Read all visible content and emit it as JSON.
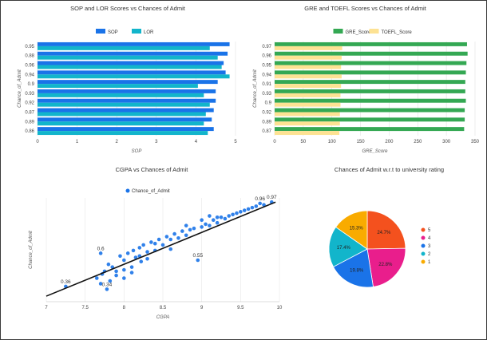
{
  "charts": [
    {
      "id": "sop_lor",
      "type": "bar",
      "orientation": "horizontal",
      "title": "SOP and LOR Scores vs Chances of Admit",
      "xlabel": "SOP",
      "ylabel": "Chance_of_Admit",
      "categories": [
        "0.95",
        "0.88",
        "0.96",
        "0.94",
        "0.9",
        "0.93",
        "0.92",
        "0.87",
        "0.89",
        "0.86"
      ],
      "series": [
        {
          "name": "SOP",
          "color": "#1a73e8",
          "values": [
            4.85,
            4.8,
            4.7,
            4.75,
            4.55,
            4.5,
            4.5,
            4.45,
            4.4,
            4.45
          ]
        },
        {
          "name": "LOR",
          "color": "#12b5cb",
          "values": [
            4.35,
            4.55,
            4.65,
            4.85,
            4.05,
            4.2,
            4.35,
            4.25,
            4.2,
            4.3
          ]
        }
      ],
      "xlim": [
        0,
        5
      ],
      "xticks": [
        "0",
        "1",
        "2",
        "3",
        "4",
        "5"
      ],
      "legend": "top-center"
    },
    {
      "id": "gre_toefl",
      "type": "bar",
      "orientation": "horizontal",
      "title": "GRE and TOEFL Scores vs Chances of Admit",
      "xlabel": "GRE_Score",
      "ylabel": "Chance_of_Admit",
      "categories": [
        "0.97",
        "0.96",
        "0.95",
        "0.94",
        "0.91",
        "0.93",
        "0.9",
        "0.92",
        "0.89",
        "0.87"
      ],
      "series": [
        {
          "name": "GRE_Score",
          "color": "#34a853",
          "values": [
            336,
            337,
            335,
            334,
            333,
            333,
            334,
            332,
            332,
            331
          ]
        },
        {
          "name": "TOEFL_Score",
          "color": "#fde293",
          "values": [
            118,
            117,
            116,
            117,
            116,
            115,
            115,
            114,
            114,
            113
          ]
        }
      ],
      "xlim": [
        0,
        350
      ],
      "xticks": [
        "0",
        "50",
        "100",
        "150",
        "200",
        "250",
        "300",
        "350"
      ],
      "legend": "top-center"
    },
    {
      "id": "cgpa",
      "type": "scatter",
      "title": "CGPA vs Chances of Admit",
      "xlabel": "CGPA",
      "ylabel": "Chance_of_Admit",
      "legend": "top-center",
      "series": [
        {
          "name": "Chance_of_Admit",
          "color": "#1a73e8"
        }
      ],
      "xlim": [
        7,
        10
      ],
      "ylim": [
        0.25,
        1.0
      ],
      "xticks": [
        "7",
        "7.5",
        "8",
        "8.5",
        "9",
        "9.5",
        "10"
      ],
      "trendline": {
        "x0": 7,
        "y0": 0.29,
        "x1": 9.95,
        "y1": 0.97
      },
      "labeled_points": [
        {
          "x": 7.25,
          "y": 0.36,
          "label": "0.36"
        },
        {
          "x": 7.7,
          "y": 0.6,
          "label": "0.6"
        },
        {
          "x": 8.95,
          "y": 0.55,
          "label": "0.55"
        },
        {
          "x": 9.9,
          "y": 0.97,
          "label": "0.97"
        },
        {
          "x": 7.78,
          "y": 0.34,
          "label": "0.34"
        },
        {
          "x": 9.75,
          "y": 0.96,
          "label": "0.96"
        }
      ],
      "points": [
        [
          7.25,
          0.36
        ],
        [
          7.7,
          0.6
        ],
        [
          7.78,
          0.34
        ],
        [
          7.65,
          0.42
        ],
        [
          7.7,
          0.38
        ],
        [
          7.72,
          0.45
        ],
        [
          7.75,
          0.47
        ],
        [
          7.8,
          0.52
        ],
        [
          7.85,
          0.5
        ],
        [
          7.9,
          0.44
        ],
        [
          7.95,
          0.58
        ],
        [
          8.0,
          0.55
        ],
        [
          8.0,
          0.48
        ],
        [
          8.05,
          0.6
        ],
        [
          8.1,
          0.5
        ],
        [
          8.12,
          0.62
        ],
        [
          8.15,
          0.57
        ],
        [
          8.2,
          0.64
        ],
        [
          8.22,
          0.54
        ],
        [
          8.25,
          0.66
        ],
        [
          8.3,
          0.61
        ],
        [
          8.35,
          0.68
        ],
        [
          8.4,
          0.62
        ],
        [
          8.45,
          0.7
        ],
        [
          8.5,
          0.66
        ],
        [
          8.55,
          0.72
        ],
        [
          8.6,
          0.7
        ],
        [
          8.65,
          0.74
        ],
        [
          8.7,
          0.71
        ],
        [
          8.75,
          0.76
        ],
        [
          8.8,
          0.73
        ],
        [
          8.85,
          0.77
        ],
        [
          8.9,
          0.78
        ],
        [
          8.95,
          0.55
        ],
        [
          9.0,
          0.79
        ],
        [
          9.05,
          0.81
        ],
        [
          9.1,
          0.8
        ],
        [
          9.15,
          0.84
        ],
        [
          9.2,
          0.82
        ],
        [
          9.25,
          0.86
        ],
        [
          9.3,
          0.85
        ],
        [
          9.35,
          0.87
        ],
        [
          9.4,
          0.88
        ],
        [
          9.45,
          0.89
        ],
        [
          9.5,
          0.9
        ],
        [
          9.55,
          0.91
        ],
        [
          9.6,
          0.92
        ],
        [
          9.65,
          0.93
        ],
        [
          9.7,
          0.94
        ],
        [
          9.75,
          0.96
        ],
        [
          9.8,
          0.95
        ],
        [
          9.9,
          0.97
        ],
        [
          8.0,
          0.42
        ],
        [
          8.1,
          0.46
        ],
        [
          7.82,
          0.4
        ],
        [
          8.3,
          0.56
        ],
        [
          8.4,
          0.67
        ],
        [
          8.6,
          0.63
        ],
        [
          9.2,
          0.86
        ],
        [
          9.1,
          0.87
        ],
        [
          8.8,
          0.8
        ],
        [
          7.9,
          0.47
        ],
        [
          8.2,
          0.58
        ],
        [
          9.0,
          0.84
        ]
      ]
    },
    {
      "id": "rating_pie",
      "type": "pie",
      "title": "Chances of Admit w.r.t to university rating",
      "legend": "right",
      "slices": [
        {
          "label": "5",
          "value": 24.7,
          "text": "24.7%",
          "color": "#f4511e"
        },
        {
          "label": "4",
          "value": 22.8,
          "text": "22.8%",
          "color": "#e91e8c"
        },
        {
          "label": "3",
          "value": 19.8,
          "text": "19.8%",
          "color": "#1a73e8"
        },
        {
          "label": "2",
          "value": 17.4,
          "text": "17.4%",
          "color": "#12b5cb"
        },
        {
          "label": "1",
          "value": 15.3,
          "text": "15.3%",
          "color": "#f9ab00"
        }
      ]
    }
  ]
}
